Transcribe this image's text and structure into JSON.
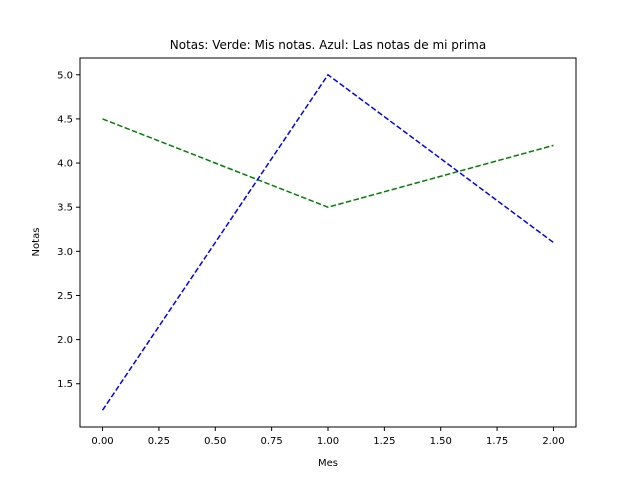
{
  "chart_data": {
    "type": "line",
    "title": "Notas: Verde: Mis notas. Azul: Las notas de mi prima",
    "xlabel": "Mes",
    "ylabel": "Notas",
    "x": [
      0,
      1,
      2
    ],
    "series": [
      {
        "values": [
          4.5,
          3.5,
          4.2
        ],
        "color": "#008000",
        "linestyle": "dashed"
      },
      {
        "values": [
          1.2,
          5.0,
          3.1
        ],
        "color": "#0000ff",
        "linestyle": "dashed"
      }
    ],
    "xlim": [
      -0.1,
      2.1
    ],
    "ylim": [
      1.01,
      5.19
    ],
    "xticks": [
      0.0,
      0.25,
      0.5,
      0.75,
      1.0,
      1.25,
      1.5,
      1.75,
      2.0
    ],
    "xtick_labels": [
      "0.00",
      "0.25",
      "0.50",
      "0.75",
      "1.00",
      "1.25",
      "1.50",
      "1.75",
      "2.00"
    ],
    "yticks": [
      1.5,
      2.0,
      2.5,
      3.0,
      3.5,
      4.0,
      4.5,
      5.0
    ],
    "ytick_labels": [
      "1.5",
      "2.0",
      "2.5",
      "3.0",
      "3.5",
      "4.0",
      "4.5",
      "5.0"
    ],
    "grid": false,
    "legend": false
  }
}
